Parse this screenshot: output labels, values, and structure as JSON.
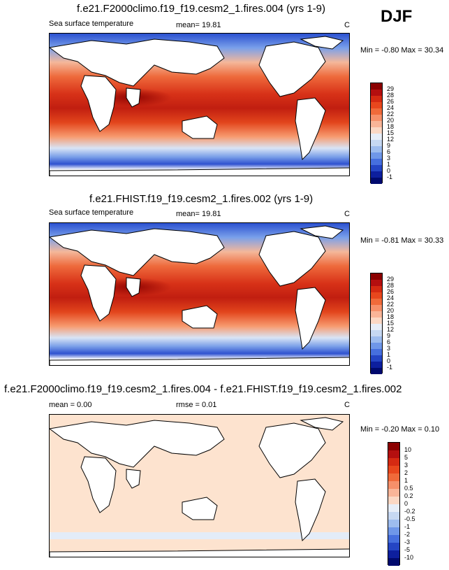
{
  "season": "DJF",
  "panels": [
    {
      "title": "f.e21.F2000climo.f19_f19.cesm2_1.fires.004 (yrs 1-9)",
      "variable": "Sea surface temperature",
      "mean_text": "mean=  19.81",
      "units": "C",
      "minmax_text": "Min =  -0.80 Max =  30.34",
      "colorbar_labels": [
        "29",
        "28",
        "26",
        "24",
        "22",
        "20",
        "18",
        "15",
        "12",
        "9",
        "6",
        "3",
        "1",
        "0",
        "-1"
      ],
      "colorbar_colors": [
        "#8b0000",
        "#b40f0f",
        "#d52a12",
        "#e8471d",
        "#f06a3a",
        "#f6906a",
        "#f9b598",
        "#fbd8c4",
        "#e7eef8",
        "#c6d8f2",
        "#9dbcee",
        "#6f97e8",
        "#466fde",
        "#2445c4",
        "#0d1f9e",
        "#000a6e"
      ]
    },
    {
      "title": "f.e21.FHIST.f19_f19.cesm2_1.fires.002 (yrs 1-9)",
      "variable": "Sea surface temperature",
      "mean_text": "mean=  19.81",
      "units": "C",
      "minmax_text": "Min =  -0.81 Max =  30.33",
      "colorbar_labels": [
        "29",
        "28",
        "26",
        "24",
        "22",
        "20",
        "18",
        "15",
        "12",
        "9",
        "6",
        "3",
        "1",
        "0",
        "-1"
      ],
      "colorbar_colors": [
        "#8b0000",
        "#b40f0f",
        "#d52a12",
        "#e8471d",
        "#f06a3a",
        "#f6906a",
        "#f9b598",
        "#fbd8c4",
        "#e7eef8",
        "#c6d8f2",
        "#9dbcee",
        "#6f97e8",
        "#466fde",
        "#2445c4",
        "#0d1f9e",
        "#000a6e"
      ]
    },
    {
      "title": "f.e21.F2000climo.f19_f19.cesm2_1.fires.004 - f.e21.FHIST.f19_f19.cesm2_1.fires.002",
      "mean_text": "mean =   0.00",
      "rmse_text": "rmse =   0.01",
      "units": "C",
      "minmax_text": "Min =  -0.20 Max =   0.10",
      "colorbar_labels": [
        "10",
        "5",
        "3",
        "2",
        "1",
        "0.5",
        "0.2",
        "0",
        "-0.2",
        "-0.5",
        "-1",
        "-2",
        "-3",
        "-5",
        "-10"
      ],
      "colorbar_colors": [
        "#8b0000",
        "#b40f0f",
        "#d52a12",
        "#e8471d",
        "#f06a3a",
        "#f6906a",
        "#f9b598",
        "#fbd8c4",
        "#e7eef8",
        "#c6d8f2",
        "#9dbcee",
        "#6f97e8",
        "#466fde",
        "#2445c4",
        "#0d1f9e",
        "#000a6e"
      ]
    }
  ],
  "colors": {
    "land": "#ffffff",
    "diff_ocean": "#fde3cf",
    "diff_pale_blue": "#e3ecf8"
  }
}
